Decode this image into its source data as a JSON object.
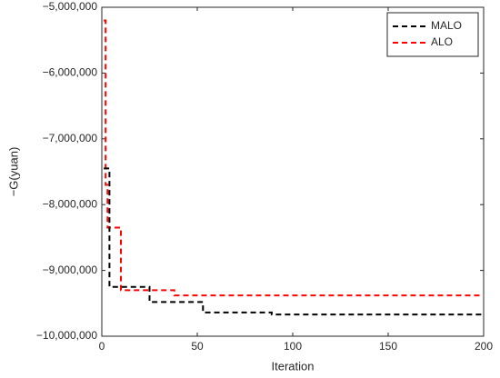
{
  "chart_data": {
    "type": "line",
    "x_label": "Iteration",
    "y_label": "−G(yuan)",
    "xlim": [
      0,
      200
    ],
    "xticks": [
      0,
      50,
      100,
      150,
      200
    ],
    "ylim": [
      -10000000,
      -5000000
    ],
    "yticks": [
      {
        "value": -10000000,
        "label": "−10,000,000"
      },
      {
        "value": -9000000,
        "label": "−9,000,000"
      },
      {
        "value": -8000000,
        "label": "−8,000,000"
      },
      {
        "value": -7000000,
        "label": "−7,000,000"
      },
      {
        "value": -6000000,
        "label": "−6,000,000"
      },
      {
        "value": -5000000,
        "label": "−5,000,000"
      }
    ],
    "legend": "upper right",
    "series": [
      {
        "name": "MALO",
        "color": "#000000",
        "x": [
          1,
          4,
          4,
          25,
          25,
          53,
          53,
          89,
          89,
          200
        ],
        "values": [
          -7450000,
          -7450000,
          -9250000,
          -9250000,
          -9480000,
          -9480000,
          -9640000,
          -9640000,
          -9670000,
          -9670000
        ]
      },
      {
        "name": "ALO",
        "color": "#ff0000",
        "x": [
          1,
          2,
          2,
          3,
          3,
          10,
          10,
          38,
          38,
          200
        ],
        "values": [
          -5200000,
          -5200000,
          -7700000,
          -7700000,
          -8350000,
          -8350000,
          -9300000,
          -9300000,
          -9380000,
          -9380000
        ]
      }
    ]
  }
}
